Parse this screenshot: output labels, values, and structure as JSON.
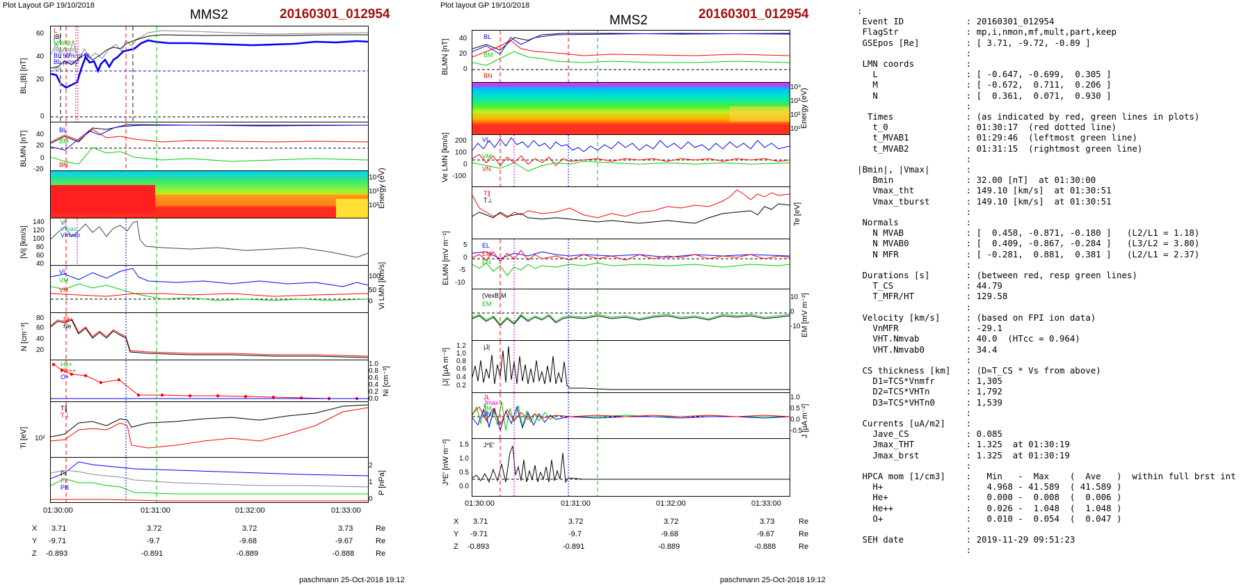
{
  "left_figure": {
    "header": "Plot Layout GP 19/10/2018",
    "spacecraft": "MMS2",
    "event": "20160301_012954",
    "time_ticks": [
      "01:30:00",
      "01:31:00",
      "01:32:00",
      "01:33:00"
    ],
    "coords": [
      {
        "axis": "X",
        "vals": [
          "3.71",
          "3.72",
          "3.72",
          "3.73"
        ],
        "unit": "Re"
      },
      {
        "axis": "Y",
        "vals": [
          "-9.71",
          "-9.7",
          "-9.68",
          "-9.67"
        ],
        "unit": "Re"
      },
      {
        "axis": "Z",
        "vals": [
          "-0.893",
          "-0.891",
          "-0.889",
          "-0.888"
        ],
        "unit": "Re"
      }
    ],
    "footer": "paschmann 25-Oct-2018 19:12",
    "panels": [
      {
        "ylabel": "BL,|B| [nT]",
        "ticks": [
          "60",
          "40",
          "20",
          "0"
        ],
        "legend": [
          "L",
          "|B|",
          "MVAB",
          "|B| mean",
          "BL 50% of BL",
          "BL proxy",
          "|B|"
        ]
      },
      {
        "ylabel": "BLMN [nT]",
        "ticks": [
          "40",
          "20",
          "0",
          "-20"
        ],
        "legend": [
          "BL",
          "BM",
          "BN"
        ]
      },
      {
        "ylabel_right": "Energy (eV)",
        "ticks_right": [
          "10⁴",
          "10³",
          "10²"
        ]
      },
      {
        "ylabel": "|Vi| [km/s]",
        "ticks": [
          "140",
          "120",
          "100",
          "80",
          "60",
          "40"
        ],
        "legend": [
          "Vi",
          "Vmax",
          "Vmvab"
        ]
      },
      {
        "ylabel_right": "Vi LMN [km/s]",
        "ticks_right": [
          "100",
          "50",
          "0"
        ],
        "legend": [
          "VL",
          "VM",
          "VN"
        ]
      },
      {
        "ylabel": "N [cm⁻³]",
        "ticks": [
          "80",
          "60",
          "40",
          "20"
        ],
        "legend": [
          "Ni",
          "Ne"
        ]
      },
      {
        "ylabel_right": "Ni [cm⁻³]",
        "ticks_right": [
          "1.0",
          "0.8",
          "0.6",
          "0.4",
          "0.2",
          "0.0"
        ],
        "legend": [
          "He+",
          "He++",
          "O+"
        ]
      },
      {
        "ylabel": "Ti [eV]",
        "ticks": [
          "10²"
        ],
        "legend": [
          "T∥",
          "T⊥"
        ]
      },
      {
        "ylabel_right": "P [nPa]",
        "ticks_right": [
          "2",
          "1",
          "0"
        ],
        "legend": [
          "Pi",
          "Pe",
          "PB"
        ]
      }
    ]
  },
  "mid_figure": {
    "header": "Plot layout GP 19/10/2018",
    "spacecraft": "MMS2",
    "event": "20160301_012954",
    "time_ticks": [
      "01:30:00",
      "01:31:00",
      "01:32:00",
      "01:33:00"
    ],
    "coords": [
      {
        "axis": "X",
        "vals": [
          "3.71",
          "3.72",
          "3.72",
          "3.73"
        ],
        "unit": "Re"
      },
      {
        "axis": "Y",
        "vals": [
          "-9.71",
          "-9.7",
          "-9.68",
          "-9.67"
        ],
        "unit": "Re"
      },
      {
        "axis": "Z",
        "vals": [
          "-0.893",
          "-0.891",
          "-0.889",
          "-0.888"
        ],
        "unit": "Re"
      }
    ],
    "footer": "paschmann 25-Oct-2018 19:12",
    "panels": [
      {
        "ylabel": "BLMN [nT]",
        "ticks": [
          "40",
          "20",
          "0"
        ],
        "legend": [
          "BL",
          "BM",
          "BN"
        ]
      },
      {
        "ylabel_right": "Energy (eV)",
        "ticks_right": [
          "10⁴",
          "10³",
          "10²",
          "10¹"
        ]
      },
      {
        "ylabel": "Ve LMN [km/s]",
        "ticks": [
          "200",
          "100",
          "0",
          "-100"
        ],
        "legend": [
          "VL",
          "VM",
          "VN"
        ]
      },
      {
        "ylabel_right": "Te [eV]",
        "legend": [
          "T∥",
          "T⊥"
        ]
      },
      {
        "ylabel": "ELMN [mV m⁻¹]",
        "ticks": [
          "5",
          "0",
          "-5",
          "-10"
        ],
        "legend": [
          "EL",
          "EM",
          "EN"
        ]
      },
      {
        "ylabel_right": "EM [mV m⁻²]",
        "ticks_right": [
          "10",
          "0",
          "-10"
        ],
        "legend": [
          "(VexB)M",
          "EM"
        ]
      },
      {
        "ylabel": "|J| [μA m⁻²]",
        "ticks": [
          "1.2",
          "1.0",
          "0.8",
          "0.6",
          "0.4",
          "0.2"
        ],
        "legend": [
          "|J|"
        ]
      },
      {
        "ylabel_right": "J [μA m⁻²]",
        "ticks_right": [
          "1.0",
          "0.5",
          "0.0",
          "-0.5"
        ],
        "legend": [
          "JL",
          "Jmax",
          "JM",
          "JN"
        ]
      },
      {
        "ylabel": "J*E' [nW m⁻³]",
        "ticks": [
          "1.5",
          "1.0",
          "0.5",
          "0.0"
        ],
        "legend": [
          "J*E'"
        ]
      }
    ]
  },
  "info_text": ":\n Event ID            : 20160301_012954\n FlagStr             : mp,i,nmon,mf,mult,part,keep\n GSEpos [Re]         : [ 3.71, -9.72, -0.89 ]\n                     :\n LMN coords          :\n   L                 : [ -0.647, -0.699,  0.305 ]\n   M                 : [ -0.672,  0.711,  0.206 ]\n   N                 : [  0.361,  0.071,  0.930 ]\n                     :\n  Times              : (as indicated by red, green lines in plots)\n   t_0               : 01:30:17  (red dotted line)\n   t_MVAB1           : 01:29:46  (leftmost green line)\n   t_MVAB2           : 01:31:15  (rightmost green line)\n                     :\n|Bmin|, |Vmax|       :\n   Bmin              : 32.00 [nT]  at 01:30:00\n   Vmax_tht          : 149.10 [km/s]  at 01:30:51\n   Vmax_tburst       : 149.10 [km/s]  at 01:30:51\n                     :\n Normals             :\n   N MVAB            : [  0.458, -0.871, -0.180 ]   (L2/L1 = 1.18)\n   N MVAB0           : [  0.409, -0.867, -0.284 ]   (L3/L2 = 3.80)\n   N MFR             : [ -0.281,  0.881,  0.381 ]   (L2/L1 = 2.37)\n                     :\n Durations [s]       : (between red, resp green lines)\n   T_CS              : 44.79\n   T_MFR/HT          : 129.58\n                     :\n Velocity [km/s]     : (based on FPI ion data)\n   VnMFR             : -29.1\n   VHT.Nmvab         : 40.0  (HTcc = 0.964)\n   VHT.Nmvab0        : 34.4\n                     :\n CS thickness [km]   : (D=T_CS * Vs from above)\n   D1=TCS*Vnmfr      : 1,305\n   D2=TCS*VHTn       : 1,792\n   D3=TCS*VHTn0      : 1,539\n                     :\n Currents [uA/m2]    :\n   Jave_CS           : 0.085\n   Jmax_THT          : 1.325  at 01:30:19\n   Jmax_brst         : 1.325  at 01:30:19\n                     :\n HPCA mom [1/cm3]    :   Min   -  Max    (  Ave   )  within full brst int\n   H+                :   4.968 - 41.589  ( 41.589 )\n   He+               :   0.000 -  0.008  (  0.006 )\n   He++              :   0.026 -  1.048  (  1.048 )\n   O+                :   0.010 -  0.054  (  0.047 )\n                     :\n SEH date            : 2019-11-29 09:51:23\n                     :",
  "colors": {
    "event": "#a01010",
    "L": "#0000ff",
    "M": "#00cc00",
    "N": "#ff0000",
    "black": "#000000"
  }
}
